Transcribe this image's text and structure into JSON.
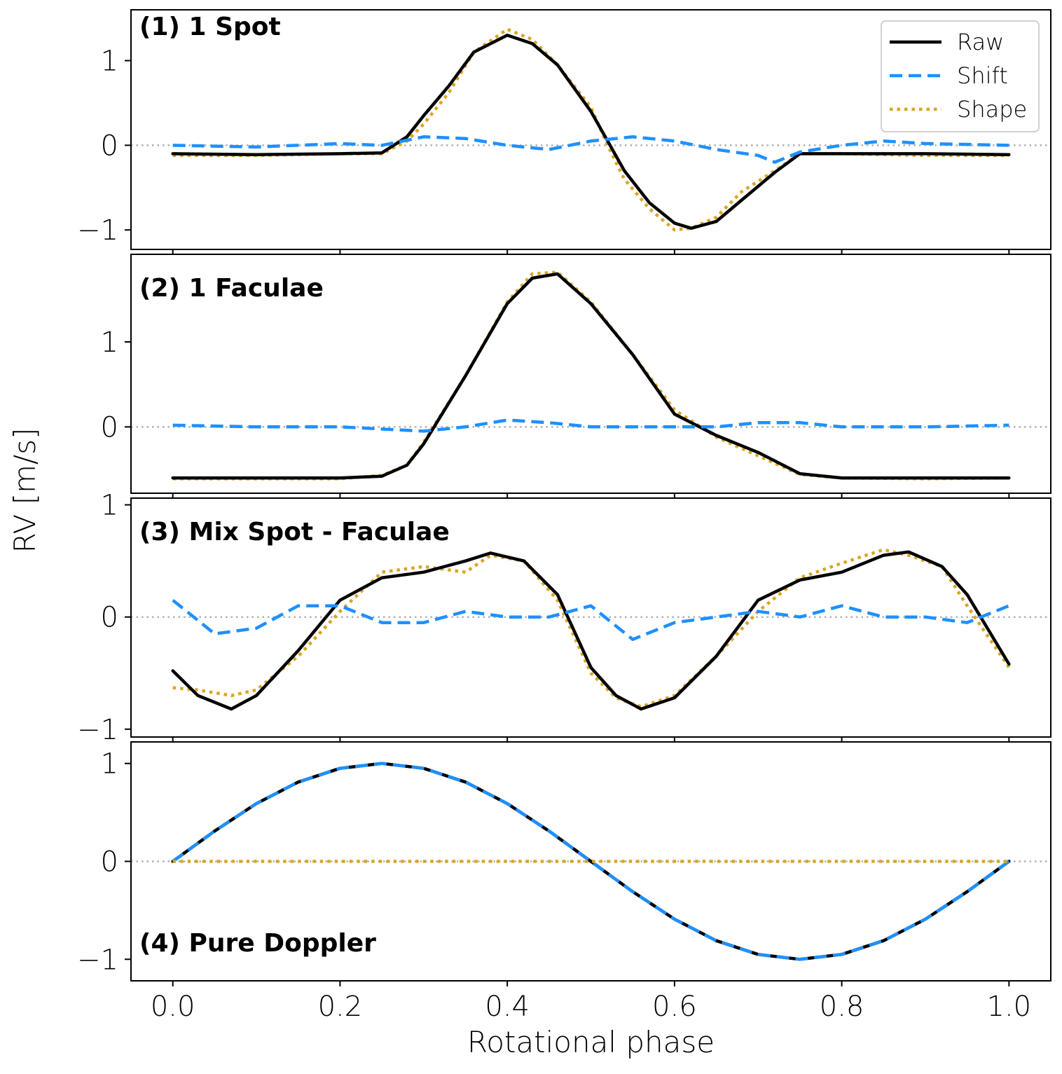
{
  "chart_data": {
    "type": "line",
    "xlabel": "Rotational phase",
    "ylabel": "RV [m/s]",
    "xlim": [
      -0.05,
      1.05
    ],
    "x_ticks": [
      0.0,
      0.2,
      0.4,
      0.6,
      0.8,
      1.0
    ],
    "x_tick_labels": [
      "0.0",
      "0.2",
      "0.4",
      "0.6",
      "0.8",
      "1.0"
    ],
    "legend": {
      "location": "top-right",
      "entries": [
        {
          "name": "Raw",
          "style": "solid",
          "color": "#000000"
        },
        {
          "name": "Shift",
          "style": "dashed",
          "color": "#1e90ff"
        },
        {
          "name": "Shape",
          "style": "dotted",
          "color": "#daa520"
        }
      ]
    },
    "colors": {
      "raw": "#000000",
      "shift": "#1e90ff",
      "shape": "#daa520",
      "zero_line": "#b0b0b0"
    },
    "panels": [
      {
        "title": "(1) 1 Spot",
        "title_position": "top-left",
        "ylim": [
          -1.23,
          1.6
        ],
        "y_ticks": [
          -1,
          0,
          1
        ],
        "y_tick_labels": [
          "−1",
          "0",
          "1"
        ],
        "show_legend": true,
        "series": [
          {
            "name": "Raw",
            "x": [
              0.0,
              0.1,
              0.2,
              0.25,
              0.28,
              0.3,
              0.33,
              0.36,
              0.4,
              0.43,
              0.46,
              0.5,
              0.52,
              0.54,
              0.57,
              0.6,
              0.62,
              0.65,
              0.68,
              0.72,
              0.75,
              0.8,
              0.9,
              1.0
            ],
            "y": [
              -0.1,
              -0.11,
              -0.1,
              -0.09,
              0.1,
              0.35,
              0.7,
              1.1,
              1.3,
              1.2,
              0.95,
              0.4,
              0.05,
              -0.3,
              -0.68,
              -0.92,
              -0.98,
              -0.9,
              -0.65,
              -0.32,
              -0.1,
              -0.1,
              -0.1,
              -0.11
            ]
          },
          {
            "name": "Shift",
            "x": [
              0.0,
              0.1,
              0.2,
              0.25,
              0.3,
              0.35,
              0.4,
              0.45,
              0.5,
              0.55,
              0.6,
              0.65,
              0.7,
              0.72,
              0.75,
              0.8,
              0.85,
              0.9,
              1.0
            ],
            "y": [
              0.0,
              -0.02,
              0.02,
              0.0,
              0.1,
              0.08,
              0.0,
              -0.05,
              0.05,
              0.1,
              0.05,
              -0.05,
              -0.12,
              -0.2,
              -0.08,
              0.0,
              0.05,
              0.02,
              0.0
            ]
          },
          {
            "name": "Shape",
            "x": [
              0.0,
              0.1,
              0.2,
              0.25,
              0.28,
              0.3,
              0.33,
              0.36,
              0.4,
              0.43,
              0.46,
              0.5,
              0.52,
              0.54,
              0.57,
              0.6,
              0.62,
              0.65,
              0.68,
              0.72,
              0.75,
              0.8,
              0.9,
              1.0
            ],
            "y": [
              -0.12,
              -0.12,
              -0.1,
              -0.1,
              0.05,
              0.25,
              0.62,
              1.1,
              1.37,
              1.25,
              0.95,
              0.45,
              0.0,
              -0.4,
              -0.75,
              -1.0,
              -0.98,
              -0.85,
              -0.55,
              -0.3,
              -0.1,
              -0.1,
              -0.12,
              -0.12
            ]
          }
        ]
      },
      {
        "title": "(2) 1 Faculae",
        "title_position": "top-left",
        "ylim": [
          -0.78,
          2.03
        ],
        "y_ticks": [
          0,
          1
        ],
        "y_tick_labels": [
          "0",
          "1"
        ],
        "series": [
          {
            "name": "Raw",
            "x": [
              0.0,
              0.1,
              0.2,
              0.25,
              0.28,
              0.3,
              0.35,
              0.4,
              0.43,
              0.46,
              0.5,
              0.55,
              0.6,
              0.65,
              0.7,
              0.75,
              0.8,
              0.9,
              1.0
            ],
            "y": [
              -0.6,
              -0.6,
              -0.6,
              -0.58,
              -0.45,
              -0.2,
              0.6,
              1.45,
              1.75,
              1.8,
              1.45,
              0.85,
              0.15,
              -0.1,
              -0.3,
              -0.55,
              -0.6,
              -0.6,
              -0.6
            ]
          },
          {
            "name": "Shift",
            "x": [
              0.0,
              0.1,
              0.2,
              0.3,
              0.35,
              0.4,
              0.45,
              0.5,
              0.55,
              0.6,
              0.65,
              0.7,
              0.75,
              0.8,
              0.9,
              1.0
            ],
            "y": [
              0.02,
              0.0,
              0.0,
              -0.05,
              0.0,
              0.08,
              0.05,
              0.0,
              0.0,
              0.0,
              0.0,
              0.05,
              0.05,
              0.0,
              0.0,
              0.02
            ]
          },
          {
            "name": "Shape",
            "x": [
              0.0,
              0.1,
              0.2,
              0.25,
              0.28,
              0.3,
              0.35,
              0.4,
              0.43,
              0.46,
              0.5,
              0.55,
              0.6,
              0.65,
              0.7,
              0.75,
              0.8,
              0.9,
              1.0
            ],
            "y": [
              -0.61,
              -0.61,
              -0.61,
              -0.57,
              -0.45,
              -0.18,
              0.6,
              1.47,
              1.8,
              1.82,
              1.47,
              0.85,
              0.2,
              -0.12,
              -0.34,
              -0.56,
              -0.6,
              -0.61,
              -0.6
            ]
          }
        ]
      },
      {
        "title": "(3) Mix Spot - Faculae",
        "title_position": "top-left",
        "ylim": [
          -1.07,
          1.06
        ],
        "y_ticks": [
          -1,
          0,
          1
        ],
        "y_tick_labels": [
          "−1",
          "0",
          "1"
        ],
        "series": [
          {
            "name": "Raw",
            "x": [
              0.0,
              0.03,
              0.07,
              0.1,
              0.15,
              0.2,
              0.25,
              0.3,
              0.35,
              0.38,
              0.42,
              0.46,
              0.5,
              0.53,
              0.56,
              0.6,
              0.65,
              0.7,
              0.75,
              0.8,
              0.85,
              0.88,
              0.92,
              0.95,
              1.0
            ],
            "y": [
              -0.48,
              -0.7,
              -0.82,
              -0.7,
              -0.3,
              0.15,
              0.35,
              0.4,
              0.5,
              0.57,
              0.5,
              0.2,
              -0.45,
              -0.7,
              -0.82,
              -0.72,
              -0.35,
              0.15,
              0.33,
              0.4,
              0.55,
              0.58,
              0.45,
              0.2,
              -0.42
            ]
          },
          {
            "name": "Shift",
            "x": [
              0.0,
              0.05,
              0.1,
              0.15,
              0.2,
              0.25,
              0.3,
              0.35,
              0.4,
              0.45,
              0.5,
              0.55,
              0.6,
              0.65,
              0.7,
              0.75,
              0.8,
              0.85,
              0.9,
              0.95,
              1.0
            ],
            "y": [
              0.15,
              -0.15,
              -0.1,
              0.1,
              0.1,
              -0.05,
              -0.05,
              0.05,
              0.0,
              0.0,
              0.1,
              -0.2,
              -0.05,
              0.0,
              0.05,
              0.0,
              0.1,
              0.0,
              0.0,
              -0.05,
              0.1
            ]
          },
          {
            "name": "Shape",
            "x": [
              0.0,
              0.03,
              0.07,
              0.1,
              0.15,
              0.2,
              0.25,
              0.3,
              0.35,
              0.38,
              0.42,
              0.46,
              0.5,
              0.53,
              0.56,
              0.6,
              0.65,
              0.7,
              0.75,
              0.8,
              0.85,
              0.88,
              0.92,
              0.95,
              1.0
            ],
            "y": [
              -0.63,
              -0.65,
              -0.7,
              -0.65,
              -0.35,
              0.05,
              0.4,
              0.45,
              0.4,
              0.55,
              0.5,
              0.15,
              -0.5,
              -0.72,
              -0.8,
              -0.7,
              -0.35,
              0.05,
              0.35,
              0.48,
              0.6,
              0.55,
              0.45,
              0.1,
              -0.45
            ]
          }
        ]
      },
      {
        "title": "(4) Pure Doppler",
        "title_position": "bottom-left",
        "ylim": [
          -1.22,
          1.22
        ],
        "y_ticks": [
          -1,
          0,
          1
        ],
        "y_tick_labels": [
          "−1",
          "0",
          "1"
        ],
        "series": [
          {
            "name": "Raw",
            "x": [
              0.0,
              0.05,
              0.1,
              0.15,
              0.2,
              0.25,
              0.3,
              0.35,
              0.4,
              0.45,
              0.5,
              0.55,
              0.6,
              0.65,
              0.7,
              0.75,
              0.8,
              0.85,
              0.9,
              0.95,
              1.0
            ],
            "y": [
              0.0,
              0.31,
              0.59,
              0.81,
              0.95,
              1.0,
              0.95,
              0.81,
              0.59,
              0.31,
              0.0,
              -0.31,
              -0.59,
              -0.81,
              -0.95,
              -1.0,
              -0.95,
              -0.81,
              -0.59,
              -0.31,
              0.0
            ]
          },
          {
            "name": "Shift",
            "x": [
              0.0,
              0.05,
              0.1,
              0.15,
              0.2,
              0.25,
              0.3,
              0.35,
              0.4,
              0.45,
              0.5,
              0.55,
              0.6,
              0.65,
              0.7,
              0.75,
              0.8,
              0.85,
              0.9,
              0.95,
              1.0
            ],
            "y": [
              0.0,
              0.31,
              0.59,
              0.81,
              0.95,
              1.0,
              0.95,
              0.81,
              0.59,
              0.31,
              0.0,
              -0.31,
              -0.59,
              -0.81,
              -0.95,
              -1.0,
              -0.95,
              -0.81,
              -0.59,
              -0.31,
              0.0
            ]
          },
          {
            "name": "Shape",
            "x": [
              0.0,
              0.25,
              0.5,
              0.75,
              1.0
            ],
            "y": [
              0.0,
              0.0,
              0.0,
              0.0,
              0.0
            ]
          }
        ]
      }
    ]
  }
}
